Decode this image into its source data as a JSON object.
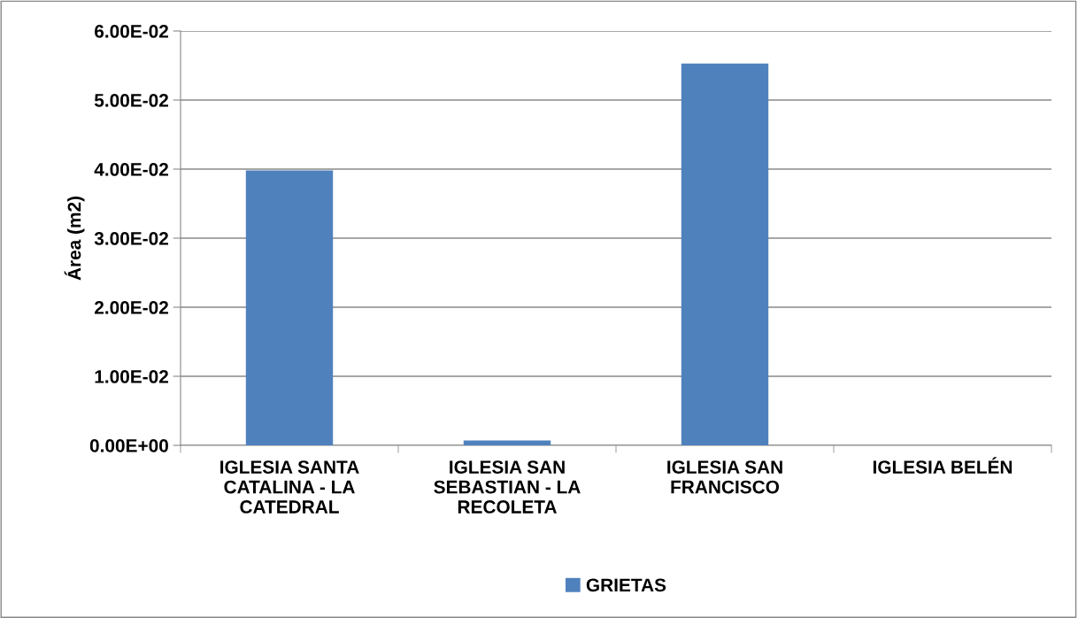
{
  "chart_data": {
    "type": "bar",
    "ylabel": "Área (m2)",
    "categories": [
      "IGLESIA SANTA\nCATALINA - LA\nCATEDRAL",
      "IGLESIA SAN\nSEBASTIAN - LA\nRECOLETA",
      "IGLESIA SAN\nFRANCISCO",
      "IGLESIA BELÉN"
    ],
    "series": [
      {
        "name": "GRIETAS",
        "color": "#4f81bd",
        "values": [
          0.0398,
          0.0007,
          0.0553,
          0
        ]
      }
    ],
    "ylim": [
      0,
      0.06
    ],
    "yticks": [
      {
        "value": 0,
        "label": "0.00E+00"
      },
      {
        "value": 0.01,
        "label": "1.00E-02"
      },
      {
        "value": 0.02,
        "label": "2.00E-02"
      },
      {
        "value": 0.03,
        "label": "3.00E-02"
      },
      {
        "value": 0.04,
        "label": "4.00E-02"
      },
      {
        "value": 0.05,
        "label": "5.00E-02"
      },
      {
        "value": 0.06,
        "label": "6.00E-02"
      }
    ],
    "grid": "y",
    "legend": "bottom"
  }
}
